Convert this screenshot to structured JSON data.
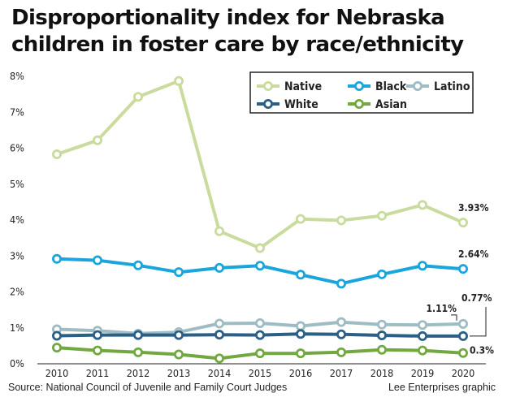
{
  "header": {
    "title_line1": "Disproportionality index for Nebraska",
    "title_line2": "children in foster care by race/ethnicity"
  },
  "footer": {
    "source": "Source: National Council of Juvenile and Family Court Judges",
    "credit": "Lee Enterprises graphic"
  },
  "chart_data": {
    "type": "line",
    "title": "Disproportionality index for Nebraska children in foster care by race/ethnicity",
    "x": [
      2010,
      2011,
      2012,
      2013,
      2014,
      2015,
      2016,
      2017,
      2018,
      2019,
      2020
    ],
    "y_ticks": [
      "0%",
      "1%",
      "2%",
      "3%",
      "4%",
      "5%",
      "6%",
      "7%",
      "8%"
    ],
    "ylim": [
      0,
      8
    ],
    "grid": false,
    "legend_position": "top-right",
    "series": [
      {
        "name": "Native",
        "color": "#c9dc9e",
        "values": [
          5.83,
          6.22,
          7.43,
          7.87,
          3.69,
          3.22,
          4.03,
          3.99,
          4.12,
          4.42,
          3.93
        ],
        "end_label": "3.93%"
      },
      {
        "name": "Black",
        "color": "#1aa6dc",
        "values": [
          2.92,
          2.88,
          2.74,
          2.55,
          2.67,
          2.73,
          2.48,
          2.23,
          2.49,
          2.73,
          2.64
        ],
        "end_label": "2.64%"
      },
      {
        "name": "Latino",
        "color": "#9dbcc4",
        "values": [
          0.96,
          0.92,
          0.84,
          0.88,
          1.12,
          1.13,
          1.05,
          1.16,
          1.09,
          1.08,
          1.11
        ],
        "end_label": "1.11%"
      },
      {
        "name": "White",
        "color": "#2c5f86",
        "values": [
          0.78,
          0.8,
          0.8,
          0.8,
          0.81,
          0.8,
          0.83,
          0.82,
          0.79,
          0.77,
          0.77
        ],
        "end_label": "0.77%"
      },
      {
        "name": "Asian",
        "color": "#72a840",
        "values": [
          0.45,
          0.37,
          0.32,
          0.26,
          0.15,
          0.29,
          0.29,
          0.32,
          0.39,
          0.37,
          0.3
        ],
        "end_label": "0.3%"
      }
    ]
  }
}
